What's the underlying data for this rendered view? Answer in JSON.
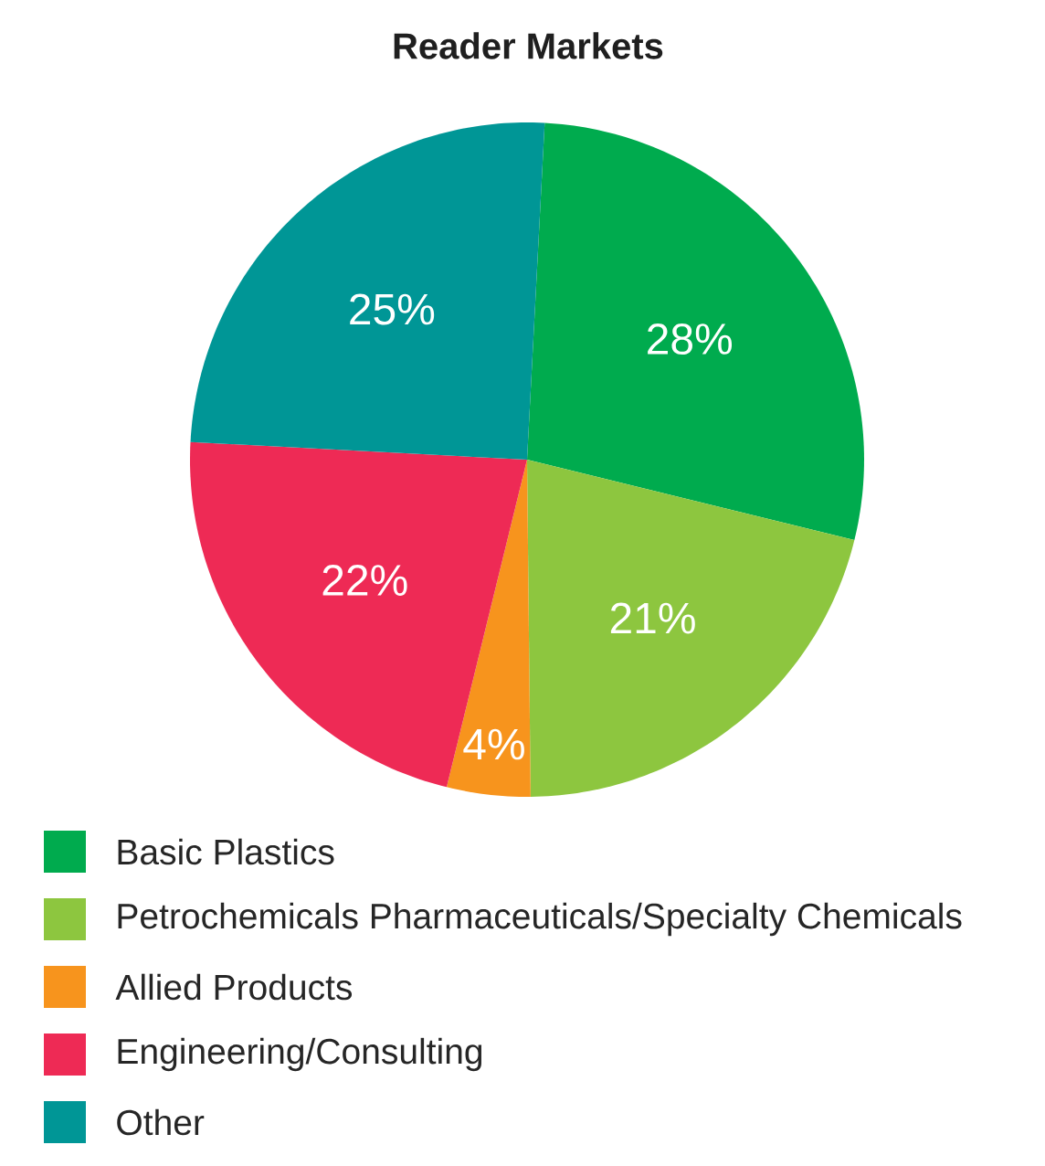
{
  "chart_data": {
    "type": "pie",
    "title": "**Reader Markets**",
    "categories": [
      "Basic Plastics",
      "Petrochemicals Pharmaceuticals/Specialty Chemicals",
      "Allied Products",
      "Engineering/Consulting",
      "Other"
    ],
    "values": [
      28,
      21,
      4,
      22,
      25
    ],
    "value_labels": [
      "28%",
      "21%",
      "4%",
      "22%",
      "25%"
    ],
    "colors": [
      "#00ab4e",
      "#8dc63f",
      "#f7941d",
      "#ee2a55",
      "#009696"
    ],
    "legend": "bottom"
  }
}
